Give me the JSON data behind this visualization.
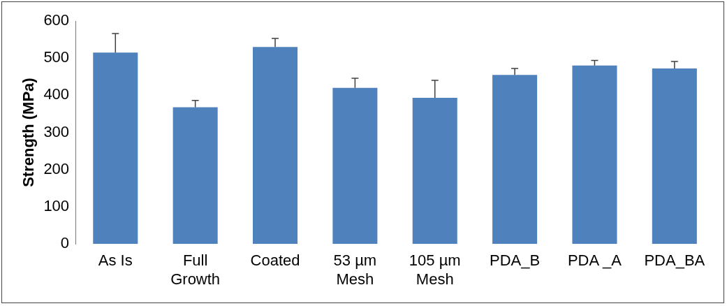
{
  "chart_data": {
    "type": "bar",
    "ylabel": "Strength (MPa)",
    "categories": [
      "As Is",
      "Full Growth",
      "Coated",
      "53 µm Mesh",
      "105 µm Mesh",
      "PDA_B",
      "PDA _A",
      "PDA_BA"
    ],
    "values": [
      515,
      368,
      530,
      420,
      393,
      455,
      480,
      472
    ],
    "errors": [
      [
        515,
        566
      ],
      [
        368,
        386
      ],
      [
        530,
        553
      ],
      [
        420,
        446
      ],
      [
        393,
        440
      ],
      [
        455,
        472
      ],
      [
        480,
        494
      ],
      [
        472,
        491
      ]
    ],
    "color": "#4f81bd",
    "ylim": [
      0,
      600
    ],
    "yticks": [
      0,
      100,
      200,
      300,
      400,
      500,
      600
    ],
    "grid": false,
    "legend": false
  }
}
